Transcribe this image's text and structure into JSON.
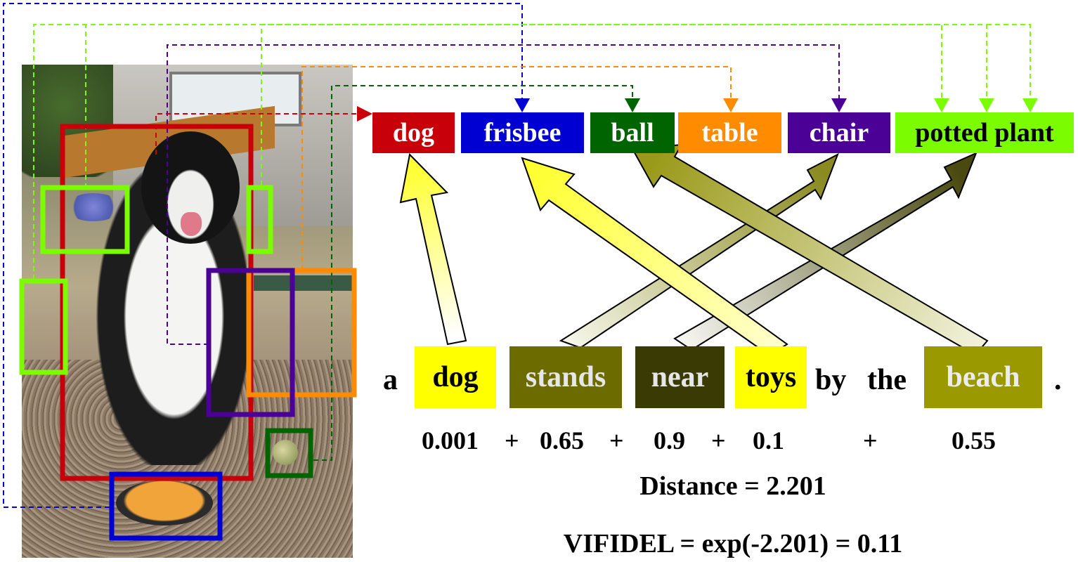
{
  "labels": [
    {
      "text": "dog",
      "bg": "#c8000a",
      "fg": "#ffffff"
    },
    {
      "text": "frisbee",
      "bg": "#0000d2",
      "fg": "#ffffff"
    },
    {
      "text": "ball",
      "bg": "#006400",
      "fg": "#ffffff"
    },
    {
      "text": "table",
      "bg": "#ff8c00",
      "fg": "#ffffff"
    },
    {
      "text": "chair",
      "bg": "#4b0096",
      "fg": "#ffffff"
    },
    {
      "text": "potted plant",
      "bg": "#7cfc00",
      "fg": "#000000"
    }
  ],
  "sentence": {
    "words": [
      {
        "text": "a",
        "bg": null,
        "fg": "#000000"
      },
      {
        "text": "dog",
        "bg": "#ffff00",
        "fg": "#000000"
      },
      {
        "text": "stands",
        "bg": "#6b6b00",
        "fg": "#e6e6e6"
      },
      {
        "text": "near",
        "bg": "#3a3a05",
        "fg": "#e6e6e6"
      },
      {
        "text": "toys",
        "bg": "#ffff00",
        "fg": "#000000"
      },
      {
        "text": "by",
        "bg": null,
        "fg": "#000000"
      },
      {
        "text": "the",
        "bg": null,
        "fg": "#000000"
      },
      {
        "text": "beach",
        "bg": "#9a9a00",
        "fg": "#ececec"
      },
      {
        "text": ".",
        "bg": null,
        "fg": "#000000"
      }
    ]
  },
  "scores": {
    "values": [
      "0.001",
      "0.65",
      "0.9",
      "0.1",
      "0.55"
    ],
    "operators": [
      "+",
      "+",
      "+",
      "+"
    ]
  },
  "distance": "Distance = 2.201",
  "vifidel": "VIFIDEL = exp(-2.201) = 0.11",
  "box_colors": {
    "dog": "#c8000a",
    "frisbee": "#0000d2",
    "ball": "#006400",
    "table": "#ff8c00",
    "chair": "#4b0096",
    "potted_plant": "#7cfc00"
  },
  "arrow_colors": {
    "yellow": "#ffff33",
    "olive": "#9a9a1a",
    "dark_olive": "#4a4a10"
  }
}
